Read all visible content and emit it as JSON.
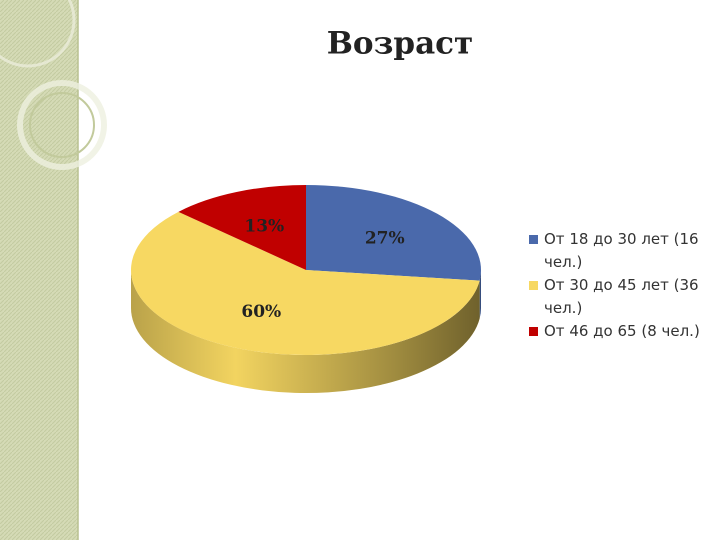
{
  "chart_data": {
    "type": "pie",
    "title": "Возраст",
    "categories": [
      "От 18 до 30 лет (16 чел.)",
      "От 30 до 45 лет (36 чел.)",
      "От 46 до 65 (8 чел.)"
    ],
    "values": [
      27,
      60,
      13
    ],
    "value_labels": [
      "27%",
      "60%",
      "13%"
    ],
    "colors": [
      "#4a69ab",
      "#f7d862",
      "#c00000"
    ]
  }
}
